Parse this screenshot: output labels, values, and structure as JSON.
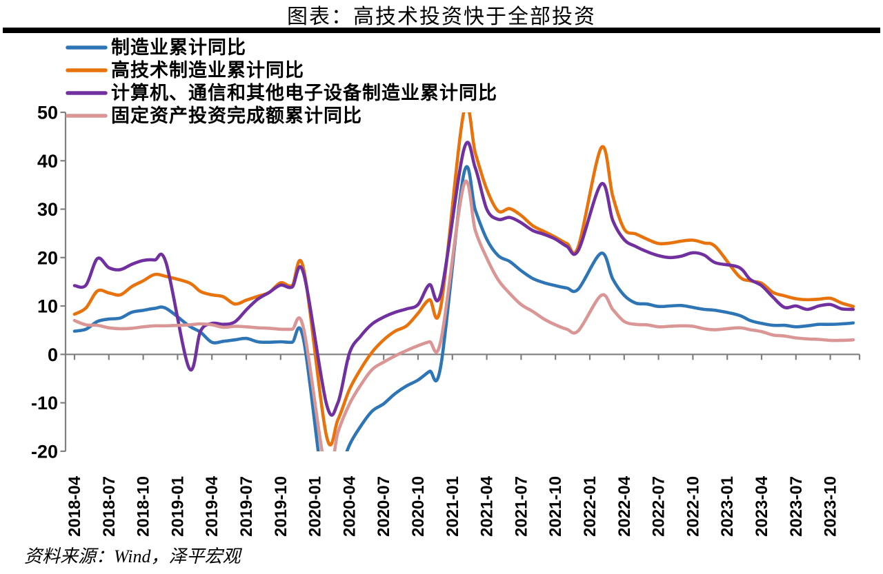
{
  "page": {
    "title": "图表：高技术投资快于全部投资",
    "source": "资料来源：Wind，泽平宏观"
  },
  "chart_data": {
    "type": "line",
    "title": "图表：高技术投资快于全部投资",
    "ylim": [
      -20,
      50
    ],
    "y_ticks": [
      50,
      40,
      30,
      20,
      10,
      0,
      -10,
      -20
    ],
    "grid": "off",
    "axis_color": "#7F7F7F",
    "legend_position": "top-left-inside",
    "x_labels": [
      "2018-04",
      "2018-07",
      "2018-10",
      "2019-01",
      "2019-04",
      "2019-07",
      "2019-10",
      "2020-01",
      "2020-04",
      "2020-07",
      "2020-10",
      "2021-01",
      "2021-04",
      "2021-07",
      "2021-10",
      "2022-01",
      "2022-04",
      "2022-07",
      "2022-10",
      "2023-01",
      "2023-04",
      "2023-07",
      "2023-10"
    ],
    "months": [
      "2018-04",
      "2018-05",
      "2018-06",
      "2018-07",
      "2018-08",
      "2018-09",
      "2018-10",
      "2018-11",
      "2018-12",
      "2019-02",
      "2019-03",
      "2019-04",
      "2019-05",
      "2019-06",
      "2019-07",
      "2019-08",
      "2019-09",
      "2019-10",
      "2019-11",
      "2019-12",
      "2020-02",
      "2020-03",
      "2020-04",
      "2020-05",
      "2020-06",
      "2020-07",
      "2020-08",
      "2020-09",
      "2020-10",
      "2020-11",
      "2020-12",
      "2021-02",
      "2021-03",
      "2021-04",
      "2021-05",
      "2021-06",
      "2021-07",
      "2021-08",
      "2021-09",
      "2021-10",
      "2021-11",
      "2021-12",
      "2022-02",
      "2022-03",
      "2022-04",
      "2022-05",
      "2022-06",
      "2022-07",
      "2022-08",
      "2022-09",
      "2022-10",
      "2022-11",
      "2022-12",
      "2023-02",
      "2023-03",
      "2023-04",
      "2023-05",
      "2023-06",
      "2023-07",
      "2023-08",
      "2023-09",
      "2023-10",
      "2023-11",
      "2023-12"
    ],
    "series": [
      {
        "name": "制造业累计同比",
        "color": "#2E75B6",
        "values": [
          4.8,
          5.2,
          6.8,
          7.3,
          7.5,
          8.7,
          9.1,
          9.5,
          9.5,
          5.9,
          4.6,
          2.5,
          2.7,
          3.0,
          3.3,
          2.6,
          2.5,
          2.6,
          2.5,
          3.1,
          -31.5,
          -25.2,
          -18.8,
          -14.8,
          -11.7,
          -10.2,
          -8.1,
          -6.5,
          -5.3,
          -3.5,
          -2.2,
          37.3,
          29.8,
          23.8,
          20.4,
          19.2,
          17.3,
          15.7,
          14.8,
          14.2,
          13.7,
          13.5,
          20.9,
          15.6,
          12.2,
          10.6,
          10.4,
          9.9,
          10.0,
          10.1,
          9.7,
          9.3,
          9.1,
          8.1,
          7.0,
          6.4,
          6.0,
          6.0,
          5.7,
          5.9,
          6.2,
          6.2,
          6.3,
          6.5
        ]
      },
      {
        "name": "高技术制造业累计同比",
        "color": "#E8720C",
        "values": [
          8.3,
          9.6,
          13.1,
          12.7,
          12.3,
          14.0,
          15.2,
          16.5,
          16.1,
          14.8,
          13.0,
          12.3,
          11.9,
          10.4,
          11.2,
          12.0,
          12.8,
          14.8,
          14.2,
          17.7,
          -16.8,
          -13.5,
          -7.3,
          -3.0,
          0.5,
          3.0,
          4.8,
          5.9,
          8.5,
          11.3,
          10.0,
          50.1,
          41.6,
          34.1,
          29.6,
          30.1,
          28.7,
          26.6,
          25.4,
          24.2,
          22.9,
          22.3,
          42.7,
          32.7,
          25.9,
          24.9,
          23.8,
          22.9,
          23.0,
          23.4,
          23.6,
          23.0,
          22.2,
          16.2,
          15.2,
          14.7,
          12.8,
          12.1,
          11.5,
          11.3,
          11.4,
          11.6,
          10.6,
          9.9
        ]
      },
      {
        "name": "计算机、通信和其他电子设备制造业累计同比",
        "color": "#7030A0",
        "values": [
          14.2,
          14.3,
          19.8,
          17.9,
          17.5,
          18.6,
          19.4,
          19.5,
          18.9,
          -2.8,
          4.8,
          6.4,
          6.2,
          6.7,
          9.2,
          11.4,
          12.8,
          14.3,
          13.9,
          16.8,
          -10.2,
          -10.0,
          0.2,
          3.8,
          6.3,
          7.7,
          8.7,
          9.4,
          10.3,
          14.4,
          12.7,
          42.3,
          38.5,
          30.0,
          27.9,
          28.3,
          27.2,
          25.6,
          24.8,
          23.8,
          22.3,
          21.5,
          35.2,
          27.7,
          23.7,
          22.3,
          21.2,
          20.4,
          20.0,
          20.3,
          21.0,
          20.5,
          18.9,
          18.0,
          15.5,
          14.2,
          11.8,
          9.7,
          10.0,
          9.3,
          10.0,
          10.3,
          9.4,
          9.3
        ]
      },
      {
        "name": "固定资产投资完成额累计同比",
        "color": "#D99694",
        "values": [
          7.0,
          6.1,
          6.0,
          5.5,
          5.3,
          5.4,
          5.7,
          5.9,
          5.9,
          6.1,
          6.3,
          6.1,
          5.6,
          5.8,
          5.7,
          5.5,
          5.4,
          5.2,
          5.2,
          5.4,
          -24.5,
          -16.1,
          -10.3,
          -6.3,
          -3.1,
          -1.6,
          -0.3,
          0.8,
          1.8,
          2.6,
          2.9,
          35.0,
          25.6,
          19.9,
          15.4,
          12.6,
          10.3,
          8.9,
          7.3,
          6.1,
          5.2,
          4.9,
          12.2,
          9.3,
          6.8,
          6.2,
          6.1,
          5.7,
          5.8,
          5.9,
          5.8,
          5.3,
          5.1,
          5.5,
          5.1,
          4.7,
          4.0,
          3.8,
          3.4,
          3.2,
          3.1,
          2.9,
          2.9,
          3.0
        ]
      }
    ]
  }
}
